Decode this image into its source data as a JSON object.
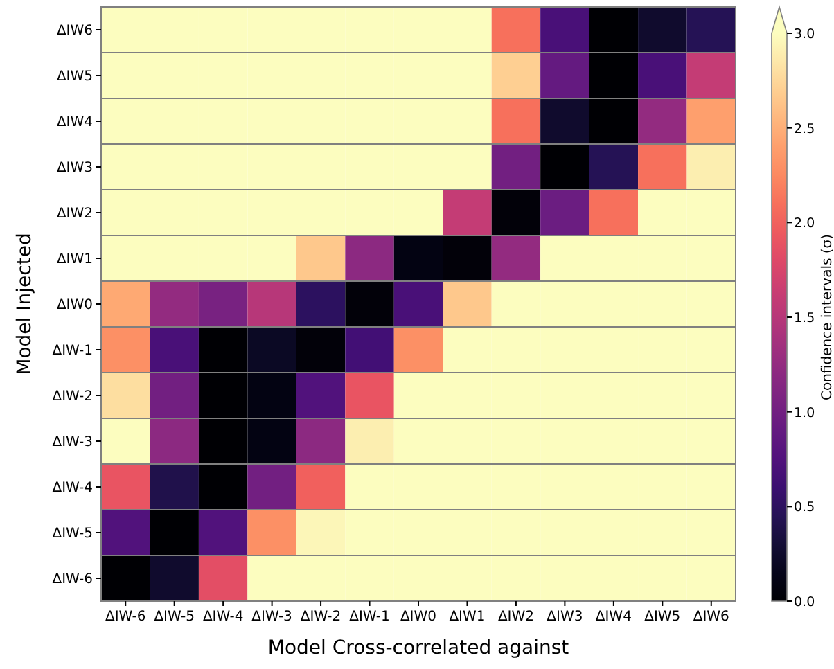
{
  "chart_data": {
    "type": "heatmap",
    "xlabel": "Model Cross-correlated against",
    "ylabel": "Model Injected",
    "clabel": "Confidence intervals (σ)",
    "categories": [
      "ΔIW-6",
      "ΔIW-5",
      "ΔIW-4",
      "ΔIW-3",
      "ΔIW-2",
      "ΔIW-1",
      "ΔIW0",
      "ΔIW1",
      "ΔIW2",
      "ΔIW3",
      "ΔIW4",
      "ΔIW5",
      "ΔIW6"
    ],
    "y_categories": [
      "ΔIW6",
      "ΔIW5",
      "ΔIW4",
      "ΔIW3",
      "ΔIW2",
      "ΔIW1",
      "ΔIW0",
      "ΔIW-1",
      "ΔIW-2",
      "ΔIW-3",
      "ΔIW-4",
      "ΔIW-5",
      "ΔIW-6"
    ],
    "cells": [
      [
        3,
        3,
        3,
        3,
        3,
        3,
        3,
        3,
        2.1,
        0.7,
        0,
        0.25,
        0.45
      ],
      [
        3,
        3,
        3,
        3,
        3,
        3,
        3,
        3,
        2.7,
        0.9,
        0,
        0.7,
        1.6
      ],
      [
        3,
        3,
        3,
        3,
        3,
        3,
        3,
        3,
        2.1,
        0.25,
        0,
        1.25,
        2.4
      ],
      [
        3,
        3,
        3,
        3,
        3,
        3,
        3,
        3,
        1.0,
        0,
        0.45,
        2.1,
        2.9
      ],
      [
        3,
        3,
        3,
        3,
        3,
        3,
        3,
        1.6,
        0.05,
        0.95,
        2.1,
        3,
        3
      ],
      [
        3,
        3,
        3,
        3,
        2.65,
        1.2,
        0.1,
        0.05,
        1.25,
        3,
        3,
        3,
        3
      ],
      [
        2.45,
        1.25,
        1.05,
        1.5,
        0.5,
        0.05,
        0.7,
        2.65,
        3,
        3,
        3,
        3,
        3
      ],
      [
        2.3,
        0.7,
        0,
        0.2,
        0.05,
        0.65,
        2.3,
        3,
        3,
        3,
        3,
        3,
        3
      ],
      [
        2.8,
        1.0,
        0,
        0.1,
        0.75,
        1.9,
        3,
        3,
        3,
        3,
        3,
        3,
        3
      ],
      [
        3,
        1.2,
        0,
        0.1,
        1.2,
        2.9,
        3,
        3,
        3,
        3,
        3,
        3,
        3
      ],
      [
        1.9,
        0.4,
        0,
        1.0,
        2.0,
        3,
        3,
        3,
        3,
        3,
        3,
        3,
        3
      ],
      [
        0.75,
        0,
        0.75,
        2.3,
        2.95,
        3,
        3,
        3,
        3,
        3,
        3,
        3,
        3
      ],
      [
        0,
        0.25,
        1.85,
        3,
        3,
        3,
        3,
        3,
        3,
        3,
        3,
        3,
        3
      ]
    ],
    "clim": [
      0,
      3
    ],
    "cticks": [
      {
        "value": 0,
        "label": "0.0"
      },
      {
        "value": 0.5,
        "label": "0.5"
      },
      {
        "value": 1,
        "label": "1.0"
      },
      {
        "value": 1.5,
        "label": "1.5"
      },
      {
        "value": 2,
        "label": "2.0"
      },
      {
        "value": 2.5,
        "label": "2.5"
      },
      {
        "value": 3,
        "label": "3.0"
      }
    ]
  }
}
